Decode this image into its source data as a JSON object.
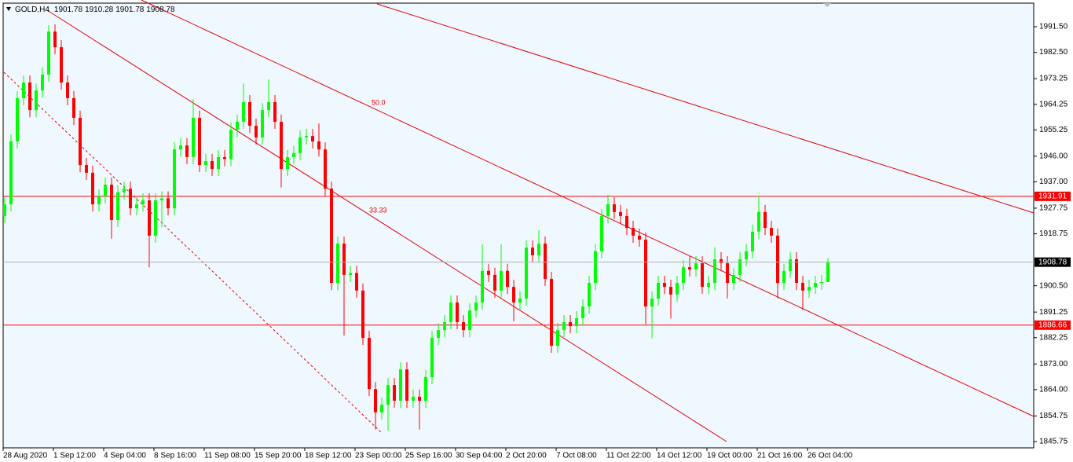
{
  "chart_data": {
    "type": "candlestick",
    "title": "GOLD,H4",
    "categories": [
      "28 Aug 2020",
      null,
      null,
      null,
      null,
      null,
      null,
      null,
      "1 Sep 12:00",
      null,
      null,
      null,
      null,
      null,
      null,
      null,
      "4 Sep 04:00",
      null,
      null,
      null,
      null,
      null,
      null,
      null,
      "8 Sep 16:00",
      null,
      null,
      null,
      null,
      null,
      null,
      null,
      "11 Sep 08:00",
      null,
      null,
      null,
      null,
      null,
      null,
      null,
      "15 Sep 20:00",
      null,
      null,
      null,
      null,
      null,
      null,
      null,
      "18 Sep 12:00",
      null,
      null,
      null,
      null,
      null,
      null,
      null,
      "23 Sep 00:00",
      null,
      null,
      null,
      null,
      null,
      null,
      null,
      "25 Sep 16:00",
      null,
      null,
      null,
      null,
      null,
      null,
      null,
      "30 Sep 04:00",
      null,
      null,
      null,
      null,
      null,
      null,
      null,
      "2 Oct 20:00",
      null,
      null,
      null,
      null,
      null,
      null,
      null,
      "7 Oct 08:00",
      null,
      null,
      null,
      null,
      null,
      null,
      null,
      "11 Oct 22:00",
      null,
      null,
      null,
      null,
      null,
      null,
      null,
      "14 Oct 12:00",
      null,
      null,
      null,
      null,
      null,
      null,
      null,
      "19 Oct 00:00",
      null,
      null,
      null,
      null,
      null,
      null,
      null,
      "21 Oct 16:00",
      null,
      null,
      null,
      null,
      null,
      null,
      null,
      "26 Oct 04:00",
      null,
      null,
      null
    ],
    "open": [
      1925.0,
      1929.1,
      1951.2,
      1966.4,
      1971.9,
      1962.2,
      1969.1,
      1974.7,
      1989.8,
      1984.3,
      1971.9,
      1966.4,
      1959.5,
      1942.9,
      1940.2,
      1929.1,
      1931.9,
      1936.0,
      1923.6,
      1933.3,
      1934.6,
      1927.7,
      1929.1,
      1930.5,
      1918.1,
      1930.5,
      1931.2,
      1927.7,
      1948.4,
      1949.8,
      1945.7,
      1959.5,
      1942.9,
      1944.3,
      1941.5,
      1945.7,
      1945.0,
      1955.3,
      1958.1,
      1965.0,
      1956.7,
      1952.6,
      1962.2,
      1965.0,
      1958.1,
      1941.5,
      1945.7,
      1947.1,
      1952.6,
      1953.1,
      1951.2,
      1948.4,
      1934.6,
      1901.5,
      1915.3,
      1904.3,
      1905.0,
      1898.8,
      1882.2,
      1864.2,
      1856.0,
      1858.7,
      1865.6,
      1860.1,
      1871.1,
      1860.1,
      1861.5,
      1860.1,
      1868.4,
      1882.2,
      1884.9,
      1887.7,
      1894.6,
      1887.7,
      1884.9,
      1891.8,
      1894.6,
      1905.7,
      1904.3,
      1898.8,
      1905.7,
      1900.1,
      1894.6,
      1896.0,
      1913.9,
      1911.2,
      1915.3,
      1902.9,
      1879.4,
      1884.9,
      1887.7,
      1886.3,
      1889.1,
      1893.2,
      1901.5,
      1912.6,
      1925.0,
      1929.1,
      1926.4,
      1925.0,
      1920.8,
      1918.1,
      1916.7,
      1893.2,
      1896.0,
      1901.5,
      1900.1,
      1897.4,
      1901.5,
      1907.0,
      1906.2,
      1908.4,
      1900.1,
      1901.5,
      1909.8,
      1908.4,
      1901.5,
      1904.3,
      1909.8,
      1912.6,
      1919.5,
      1926.4,
      1920.8,
      1918.1,
      1901.5,
      1905.7,
      1909.8,
      1901.5,
      1898.8,
      1900.1,
      1901.5,
      1901.78
    ],
    "high": [
      1931.6,
      1953.7,
      1968.9,
      1974.4,
      1974.4,
      1971.6,
      1977.2,
      1992.0,
      1992.3,
      1986.8,
      1974.4,
      1968.9,
      1962.0,
      1945.4,
      1942.7,
      1934.4,
      1938.5,
      1938.5,
      1935.8,
      1937.1,
      1937.1,
      1931.6,
      1933.0,
      1933.0,
      1933.0,
      1933.7,
      1933.7,
      1950.9,
      1952.3,
      1952.3,
      1966.0,
      1962.0,
      1946.8,
      1946.8,
      1948.2,
      1948.2,
      1957.8,
      1960.6,
      1971.5,
      1967.5,
      1959.2,
      1964.7,
      1973.0,
      1967.5,
      1960.6,
      1948.2,
      1949.6,
      1955.1,
      1955.6,
      1955.6,
      1957.5,
      1950.9,
      1937.1,
      1917.8,
      1917.8,
      1907.5,
      1907.5,
      1901.3,
      1884.7,
      1866.7,
      1861.2,
      1868.1,
      1868.1,
      1873.6,
      1873.6,
      1864.0,
      1864.0,
      1870.9,
      1884.7,
      1887.4,
      1890.2,
      1897.1,
      1897.1,
      1890.2,
      1894.3,
      1897.1,
      1915.0,
      1908.2,
      1906.8,
      1915.0,
      1908.2,
      1902.6,
      1898.5,
      1916.4,
      1916.4,
      1920.0,
      1917.8,
      1905.4,
      1887.4,
      1890.2,
      1890.2,
      1891.6,
      1895.7,
      1904.0,
      1915.1,
      1927.5,
      1932.5,
      1931.6,
      1928.9,
      1927.5,
      1923.3,
      1920.6,
      1919.2,
      1898.5,
      1904.0,
      1904.0,
      1902.6,
      1904.0,
      1909.5,
      1911.0,
      1910.9,
      1910.9,
      1904.0,
      1914.0,
      1912.3,
      1910.9,
      1906.8,
      1912.3,
      1915.1,
      1922.0,
      1932.0,
      1928.9,
      1923.3,
      1920.6,
      1908.2,
      1912.3,
      1912.3,
      1904.0,
      1902.6,
      1904.0,
      1904.3,
      1910.28
    ],
    "low": [
      1922.5,
      1926.6,
      1948.7,
      1963.9,
      1959.7,
      1959.7,
      1966.6,
      1972.2,
      1981.8,
      1969.4,
      1963.9,
      1957.0,
      1940.4,
      1937.7,
      1926.6,
      1926.6,
      1929.4,
      1917.0,
      1921.1,
      1930.8,
      1925.2,
      1925.2,
      1926.6,
      1907.0,
      1915.6,
      1921.0,
      1925.2,
      1925.2,
      1945.9,
      1943.2,
      1943.2,
      1940.4,
      1940.4,
      1939.0,
      1939.0,
      1942.5,
      1942.5,
      1952.8,
      1955.6,
      1954.2,
      1950.1,
      1950.1,
      1959.7,
      1955.6,
      1935.0,
      1939.0,
      1943.2,
      1944.6,
      1950.1,
      1948.7,
      1945.9,
      1932.1,
      1899.0,
      1899.0,
      1883.0,
      1901.8,
      1896.3,
      1879.7,
      1861.7,
      1850.0,
      1853.5,
      1849.5,
      1857.6,
      1857.6,
      1857.6,
      1857.6,
      1850.0,
      1857.6,
      1865.9,
      1879.7,
      1882.4,
      1885.2,
      1885.2,
      1882.4,
      1882.4,
      1889.3,
      1892.1,
      1901.8,
      1896.3,
      1896.3,
      1897.6,
      1888.0,
      1892.1,
      1893.5,
      1908.7,
      1908.7,
      1900.4,
      1876.9,
      1876.9,
      1882.4,
      1883.8,
      1883.8,
      1886.6,
      1890.7,
      1899.0,
      1910.1,
      1922.5,
      1923.9,
      1922.5,
      1918.3,
      1915.6,
      1914.2,
      1887.0,
      1882.0,
      1893.5,
      1897.6,
      1889.0,
      1894.9,
      1899.0,
      1903.7,
      1903.7,
      1897.6,
      1897.6,
      1899.0,
      1905.9,
      1896.0,
      1899.0,
      1901.8,
      1907.3,
      1910.1,
      1917.0,
      1918.3,
      1915.6,
      1896.0,
      1899.0,
      1903.2,
      1899.0,
      1892.0,
      1896.3,
      1897.6,
      1899.0,
      1901.78
    ],
    "close": [
      1929.1,
      1951.2,
      1966.4,
      1971.9,
      1962.2,
      1969.1,
      1974.7,
      1989.8,
      1984.3,
      1971.9,
      1966.4,
      1959.5,
      1942.9,
      1940.2,
      1929.1,
      1931.9,
      1936.0,
      1923.6,
      1933.3,
      1934.6,
      1927.7,
      1929.1,
      1930.5,
      1918.1,
      1930.5,
      1931.2,
      1927.7,
      1948.4,
      1949.8,
      1945.7,
      1959.5,
      1942.9,
      1944.3,
      1941.5,
      1945.7,
      1945.0,
      1955.3,
      1958.1,
      1965.0,
      1956.7,
      1952.6,
      1962.2,
      1965.0,
      1958.1,
      1941.5,
      1945.7,
      1947.1,
      1952.6,
      1953.1,
      1951.2,
      1948.4,
      1934.6,
      1901.5,
      1915.3,
      1904.3,
      1905.0,
      1898.8,
      1882.2,
      1864.2,
      1856.0,
      1858.7,
      1865.6,
      1860.1,
      1871.1,
      1860.1,
      1861.5,
      1860.1,
      1868.4,
      1882.2,
      1884.9,
      1887.7,
      1894.6,
      1887.7,
      1884.9,
      1891.8,
      1894.6,
      1905.7,
      1904.3,
      1898.8,
      1905.7,
      1900.1,
      1894.6,
      1896.0,
      1913.9,
      1911.2,
      1915.3,
      1902.9,
      1879.4,
      1884.9,
      1887.7,
      1886.3,
      1889.1,
      1893.2,
      1901.5,
      1912.6,
      1925.0,
      1929.1,
      1926.4,
      1925.0,
      1920.8,
      1918.1,
      1916.7,
      1893.2,
      1896.0,
      1901.5,
      1900.1,
      1897.4,
      1901.5,
      1907.0,
      1906.2,
      1908.4,
      1900.1,
      1901.5,
      1909.8,
      1908.4,
      1901.5,
      1904.3,
      1909.8,
      1912.6,
      1919.5,
      1926.4,
      1920.8,
      1918.1,
      1901.5,
      1905.7,
      1909.8,
      1901.5,
      1898.8,
      1900.1,
      1901.5,
      1901.78,
      1908.78
    ],
    "up_color": "#00ff00",
    "down_color": "#ff0000",
    "ylim": [
      1843.54,
      1999.78
    ],
    "yticks": [
      {
        "value": 1991.5,
        "label": "1991.50"
      },
      {
        "value": 1982.5,
        "label": "1982.50"
      },
      1973.25,
      1964.25,
      1955.25,
      {
        "value": 1946,
        "label": "1946.00"
      },
      {
        "value": 1937,
        "label": "1937.00"
      },
      1927.75,
      1918.75,
      {
        "value": 1900.5,
        "label": "1900.50"
      },
      1891.25,
      1882.25,
      {
        "value": 1873,
        "label": "1873.00"
      },
      {
        "value": 1864,
        "label": "1864.00"
      },
      1854.75,
      1845.75
    ],
    "hlines": [
      {
        "value": 1931.91,
        "color": "#ff0000"
      },
      {
        "value": 1886.66,
        "color": "#ff0000"
      }
    ],
    "annotations": [
      "50.0",
      "33.33"
    ]
  }
}
